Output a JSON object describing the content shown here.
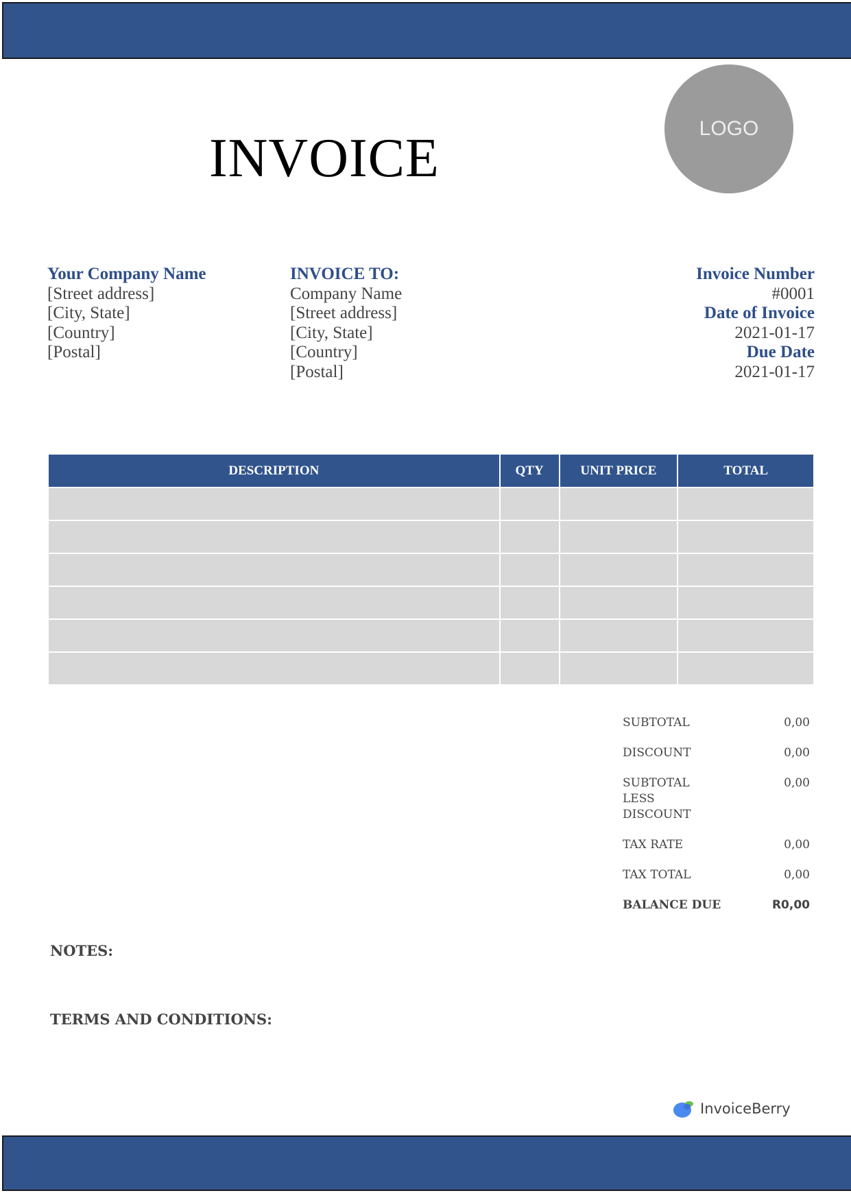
{
  "title": "INVOICE",
  "logo_text": "LOGO",
  "from": {
    "name": "Your Company Name",
    "lines": [
      "[Street address]",
      "[City, State]",
      "[Country]",
      "[Postal]"
    ]
  },
  "to": {
    "heading": "INVOICE TO:",
    "lines": [
      "Company Name",
      "[Street address]",
      "[City, State]",
      "[Country]",
      "[Postal]"
    ]
  },
  "meta": {
    "number_label": "Invoice Number",
    "number": "#0001",
    "date_label": "Date of Invoice",
    "date": "2021-01-17",
    "due_label": "Due Date",
    "due": "2021-01-17"
  },
  "table": {
    "headers": [
      "DESCRIPTION",
      "QTY",
      "UNIT PRICE",
      "TOTAL"
    ],
    "row_count": 6
  },
  "totals": [
    {
      "label": "SUBTOTAL",
      "value": "0,00"
    },
    {
      "label": "DISCOUNT",
      "value": "0,00"
    },
    {
      "label": "SUBTOTAL LESS DISCOUNT",
      "value": "0,00"
    },
    {
      "label": "TAX RATE",
      "value": "0,00"
    },
    {
      "label": "TAX TOTAL",
      "value": "0,00"
    },
    {
      "label": "BALANCE DUE",
      "value": "R0,00"
    }
  ],
  "notes_label": "NOTES:",
  "terms_label": "TERMS AND CONDITIONS:",
  "brand": "InvoiceBerry",
  "colors": {
    "accent": "#31548d",
    "heading": "#2e4e8a",
    "row_fill": "#d8d8d8"
  }
}
